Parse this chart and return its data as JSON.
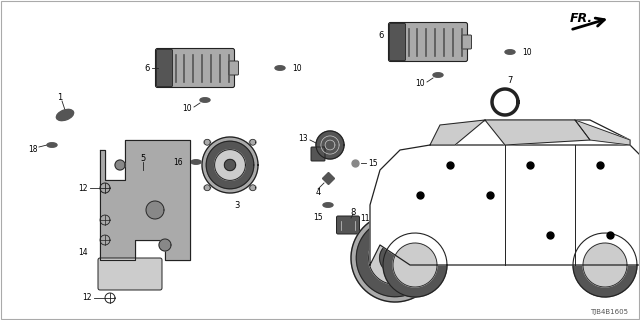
{
  "background_color": "#ffffff",
  "diagram_code": "TJB4B1605",
  "fr_label": "FR.",
  "lc": "#222222",
  "gray1": "#888888",
  "gray2": "#555555",
  "gray3": "#aaaaaa",
  "gray4": "#cccccc",
  "darkgray": "#333333"
}
